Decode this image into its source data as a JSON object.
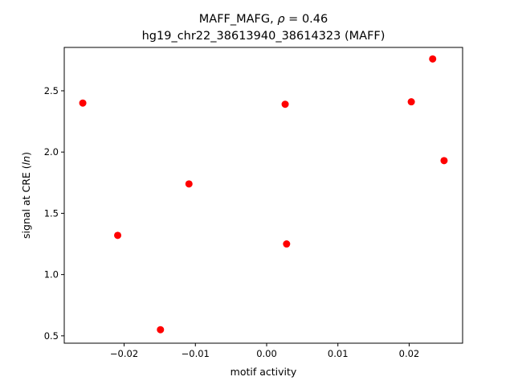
{
  "chart_data": {
    "type": "scatter",
    "title_line1_prefix": "MAFF_MAFG, ",
    "title_rho_symbol": "ρ",
    "title_rho_value": " = 0.46",
    "title_line2": "hg19_chr22_38613940_38614323 (MAFF)",
    "xlabel": "motif activity",
    "ylabel_prefix": "signal at CRE (",
    "ylabel_italic": "ln",
    "ylabel_suffix": ")",
    "xlim": [
      -0.0284,
      0.0275
    ],
    "ylim": [
      0.44,
      2.854
    ],
    "xticks": [
      -0.02,
      -0.01,
      0.0,
      0.01,
      0.02
    ],
    "xtick_labels": [
      "−0.02",
      "−0.01",
      "0.00",
      "0.01",
      "0.02"
    ],
    "yticks": [
      0.5,
      1.0,
      1.5,
      2.0,
      2.5
    ],
    "ytick_labels": [
      "0.5",
      "1.0",
      "1.5",
      "2.0",
      "2.5"
    ],
    "grid": false,
    "marker_color": "#ff0000",
    "points": [
      {
        "x": -0.0258,
        "y": 2.4
      },
      {
        "x": -0.0209,
        "y": 1.32
      },
      {
        "x": -0.0149,
        "y": 0.55
      },
      {
        "x": -0.0109,
        "y": 1.74
      },
      {
        "x": 0.0026,
        "y": 2.39
      },
      {
        "x": 0.0028,
        "y": 1.25
      },
      {
        "x": 0.0203,
        "y": 2.41
      },
      {
        "x": 0.0233,
        "y": 2.76
      },
      {
        "x": 0.0249,
        "y": 1.93
      }
    ]
  }
}
